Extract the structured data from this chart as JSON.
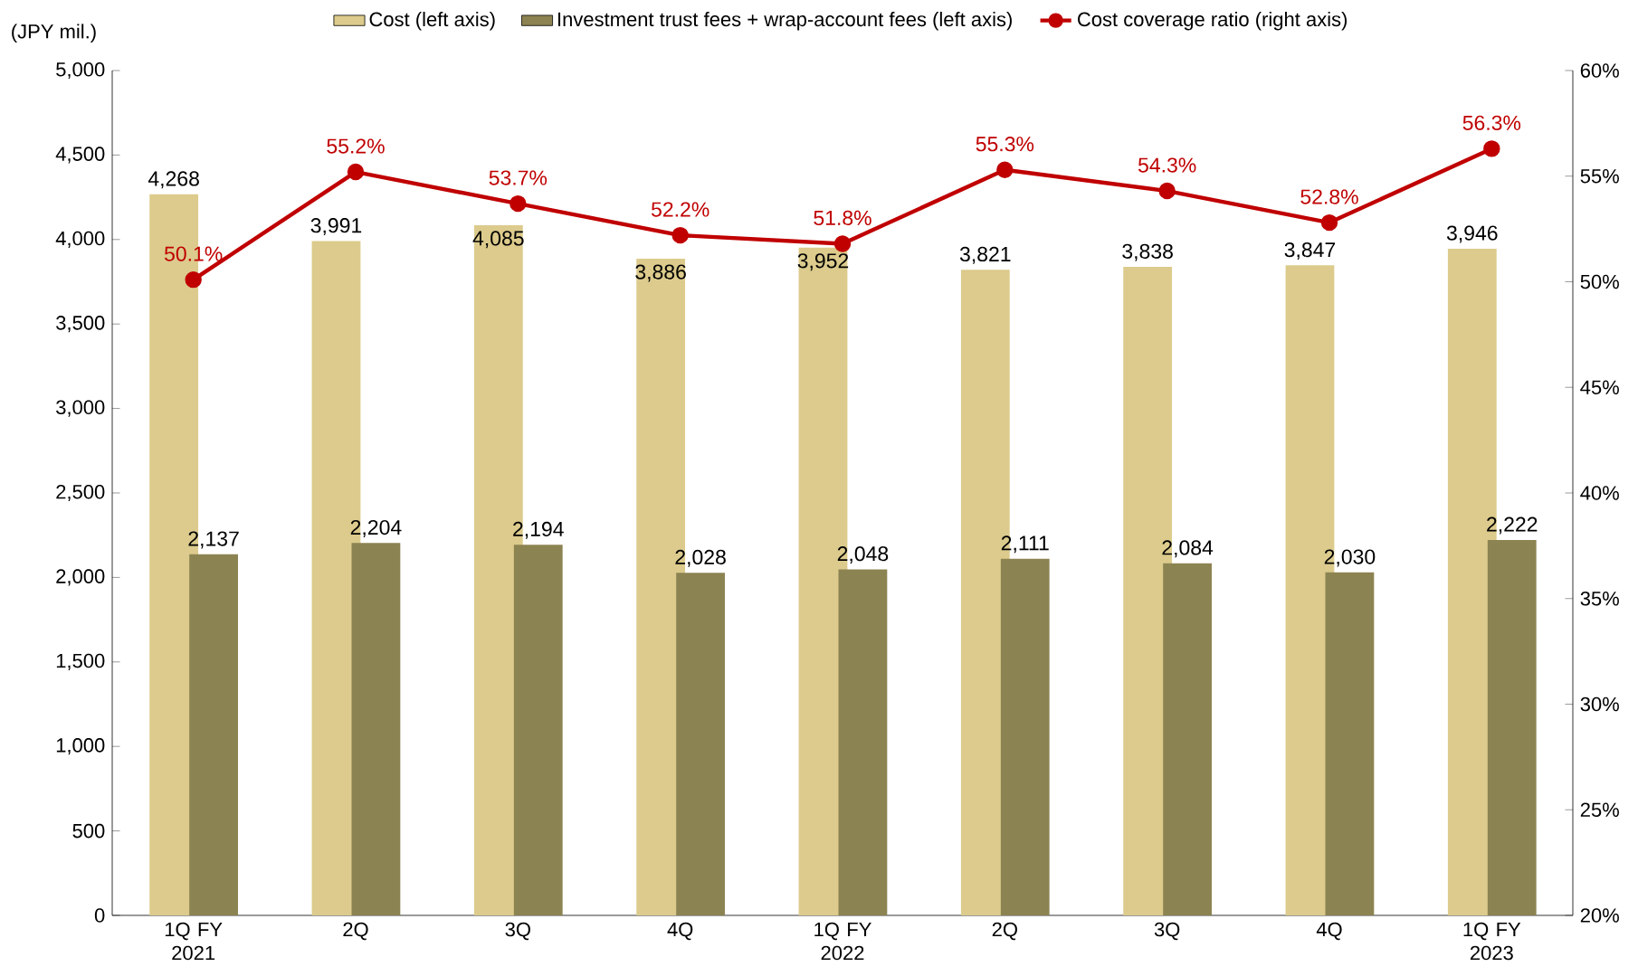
{
  "chart_data": {
    "type": "bar",
    "ylabel": "(JPY mil.)",
    "categories": [
      "1Q FY 2021",
      "2Q",
      "3Q",
      "4Q",
      "1Q FY 2022",
      "2Q",
      "3Q",
      "4Q",
      "1Q FY 2023"
    ],
    "series": [
      {
        "name": "Cost (left axis)",
        "color": "#dccb8c",
        "values": [
          4268,
          3991,
          4085,
          3886,
          3952,
          3821,
          3838,
          3847,
          3946
        ],
        "value_labels": [
          "4,268",
          "3,991",
          "4,085",
          "3,886",
          "3,952",
          "3,821",
          "3,838",
          "3,847",
          "3,946"
        ]
      },
      {
        "name": "Investment trust fees + wrap-account fees (left axis)",
        "color": "#8c8352",
        "values": [
          2137,
          2204,
          2194,
          2028,
          2048,
          2111,
          2084,
          2030,
          2222
        ],
        "value_labels": [
          "2,137",
          "2,204",
          "2,194",
          "2,028",
          "2,048",
          "2,111",
          "2,084",
          "2,030",
          "2,222"
        ]
      },
      {
        "name": "Cost coverage ratio (right axis)",
        "type": "line",
        "axis": "y2",
        "color": "#c00000",
        "values": [
          50.1,
          55.2,
          53.7,
          52.2,
          51.8,
          55.3,
          54.3,
          52.8,
          56.3
        ],
        "value_labels": [
          "50.1%",
          "55.2%",
          "53.7%",
          "52.2%",
          "51.8%",
          "55.3%",
          "54.3%",
          "52.8%",
          "56.3%"
        ]
      }
    ],
    "ylim": [
      0,
      5000
    ],
    "yticks": [
      {
        "value": 0,
        "label": "0"
      },
      {
        "value": 500,
        "label": "500"
      },
      {
        "value": 1000,
        "label": "1,000"
      },
      {
        "value": 1500,
        "label": "1,500"
      },
      {
        "value": 2000,
        "label": "2,000"
      },
      {
        "value": 2500,
        "label": "2,500"
      },
      {
        "value": 3000,
        "label": "3,000"
      },
      {
        "value": 3500,
        "label": "3,500"
      },
      {
        "value": 4000,
        "label": "4,000"
      },
      {
        "value": 4500,
        "label": "4,500"
      },
      {
        "value": 5000,
        "label": "5,000"
      }
    ],
    "y2lim": [
      20,
      60
    ],
    "y2ticks": [
      {
        "value": 20,
        "label": "20%"
      },
      {
        "value": 25,
        "label": "25%"
      },
      {
        "value": 30,
        "label": "30%"
      },
      {
        "value": 35,
        "label": "35%"
      },
      {
        "value": 40,
        "label": "40%"
      },
      {
        "value": 45,
        "label": "45%"
      },
      {
        "value": 50,
        "label": "50%"
      },
      {
        "value": 55,
        "label": "55%"
      },
      {
        "value": 60,
        "label": "60%"
      }
    ],
    "legend": "top",
    "grid": false,
    "marker": "circle",
    "line_style": "solid"
  }
}
